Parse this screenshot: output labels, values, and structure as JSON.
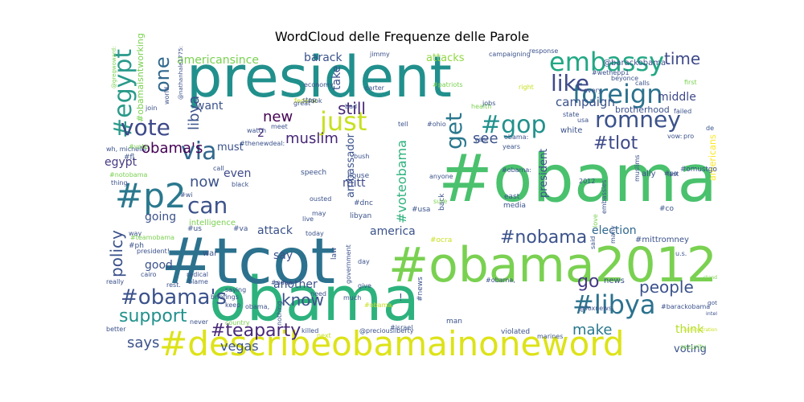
{
  "chart_data": {
    "type": "wordcloud",
    "title": "WordCloud delle Frequenze delle Parole",
    "colormap": "viridis",
    "background": "#ffffff",
    "words": [
      {
        "text": "#obama",
        "weight": 100,
        "color": "#4ac16d"
      },
      {
        "text": "president",
        "weight": 58,
        "color": "#21908d"
      },
      {
        "text": "obama",
        "weight": 58,
        "color": "#2db27d"
      },
      {
        "text": "#tcot",
        "weight": 56,
        "color": "#2c728e"
      },
      {
        "text": "#obama2012",
        "weight": 50,
        "color": "#7ad151"
      },
      {
        "text": "#describeobamainoneword",
        "weight": 38,
        "color": "#dde318"
      },
      {
        "text": "embassy",
        "weight": 25,
        "color": "#22a884"
      },
      {
        "text": "foreign",
        "weight": 24,
        "color": "#2c728e"
      },
      {
        "text": "#p2",
        "weight": 32,
        "color": "#2a788e"
      },
      {
        "text": "#egypt",
        "weight": 22,
        "color": "#2a9a8a"
      },
      {
        "text": "#gop",
        "weight": 22,
        "color": "#21918c"
      },
      {
        "text": "romney",
        "weight": 22,
        "color": "#3b528b"
      },
      {
        "text": "vote",
        "weight": 22,
        "color": "#3e4a89"
      },
      {
        "text": "#libya",
        "weight": 24,
        "color": "#2c728e"
      },
      {
        "text": "#obama's",
        "weight": 20,
        "color": "#3b528b"
      },
      {
        "text": "#nobama",
        "weight": 18,
        "color": "#3b528b"
      },
      {
        "text": "#teaparty",
        "weight": 18,
        "color": "#482878"
      },
      {
        "text": "like",
        "weight": 18,
        "color": "#3e4a89"
      },
      {
        "text": "just",
        "weight": 22,
        "color": "#c8e020"
      },
      {
        "text": "via",
        "weight": 22,
        "color": "#31688e"
      },
      {
        "text": "can",
        "weight": 20,
        "color": "#3b528b"
      },
      {
        "text": "one",
        "weight": 18,
        "color": "#31688e"
      },
      {
        "text": "get",
        "weight": 18,
        "color": "#2a788e"
      },
      {
        "text": "#tlot",
        "weight": 18,
        "color": "#3e4a89"
      },
      {
        "text": "support",
        "weight": 18,
        "color": "#21918c"
      },
      {
        "text": "know",
        "weight": 16,
        "color": "#3b528b"
      },
      {
        "text": "people",
        "weight": 16,
        "color": "#3b528b"
      },
      {
        "text": "make",
        "weight": 15,
        "color": "#2a788e"
      },
      {
        "text": "says",
        "weight": 15,
        "color": "#3b528b"
      },
      {
        "text": "policy",
        "weight": 14,
        "color": "#3b528b"
      },
      {
        "text": "go",
        "weight": 16,
        "color": "#443983"
      },
      {
        "text": "time",
        "weight": 15,
        "color": "#3e4a89"
      },
      {
        "text": "obama's",
        "weight": 14,
        "color": "#440154"
      },
      {
        "text": "muslim",
        "weight": 13,
        "color": "#482878"
      },
      {
        "text": "still",
        "weight": 14,
        "color": "#482878"
      },
      {
        "text": "libya",
        "weight": 13,
        "color": "#3b528b"
      },
      {
        "text": "see",
        "weight": 13,
        "color": "#3b528b"
      },
      {
        "text": "new",
        "weight": 13,
        "color": "#440154"
      },
      {
        "text": "now",
        "weight": 13,
        "color": "#3b528b"
      },
      {
        "text": "campaign",
        "weight": 11,
        "color": "#3b528b"
      },
      {
        "text": "vegas",
        "weight": 11,
        "color": "#3b528b"
      },
      {
        "text": "middle",
        "weight": 10,
        "color": "#3e4a89"
      },
      {
        "text": "attack",
        "weight": 10,
        "color": "#3b528b"
      },
      {
        "text": "america",
        "weight": 10,
        "color": "#3b528b"
      },
      {
        "text": "voting",
        "weight": 9,
        "color": "#3b528b"
      },
      {
        "text": "think",
        "weight": 9,
        "color": "#b5de2b"
      },
      {
        "text": "barack",
        "weight": 9,
        "color": "#3b528b"
      },
      {
        "text": "attacks",
        "weight": 9,
        "color": "#90d743"
      },
      {
        "text": "americansince",
        "weight": 9,
        "color": "#7ad151"
      },
      {
        "text": "ambassador",
        "weight": 8,
        "color": "#3b528b"
      },
      {
        "text": "mitt",
        "weight": 8,
        "color": "#3e4a89"
      },
      {
        "text": "president",
        "weight": 8,
        "color": "#3b528b"
      },
      {
        "text": "election",
        "weight": 8,
        "color": "#31688e"
      },
      {
        "text": "egypt",
        "weight": 8,
        "color": "#443983"
      },
      {
        "text": "going",
        "weight": 8,
        "color": "#3b528b"
      },
      {
        "text": "even",
        "weight": 8,
        "color": "#3e4a89"
      },
      {
        "text": "good",
        "weight": 8,
        "color": "#3b528b"
      },
      {
        "text": "another",
        "weight": 8,
        "color": "#3b528b"
      },
      {
        "text": "say",
        "weight": 8,
        "color": "#3b528b"
      },
      {
        "text": "take",
        "weight": 8,
        "color": "#3b528b"
      },
      {
        "text": "want",
        "weight": 8,
        "color": "#3b528b"
      },
      {
        "text": "must",
        "weight": 8,
        "color": "#3b528b"
      },
      {
        "text": "#voteobama",
        "weight": 8,
        "color": "#2db27d"
      },
      {
        "text": "americans",
        "weight": 7,
        "color": "#fde725"
      },
      {
        "text": "#omustgo",
        "weight": 7,
        "color": "#3b528b"
      },
      {
        "text": "@barackobama",
        "weight": 7,
        "color": "#3b528b"
      },
      {
        "text": "#mittromney",
        "weight": 6,
        "color": "#3b528b"
      },
      {
        "text": "brotherhood",
        "weight": 6,
        "color": "#3b528b"
      },
      {
        "text": "#obamaisntworking",
        "weight": 6,
        "color": "#7ad151"
      },
      {
        "text": "intelligence",
        "weight": 6,
        "color": "#7ad151"
      },
      {
        "text": "news",
        "weight": 6,
        "color": "#3b528b"
      },
      {
        "text": "ally",
        "weight": 6,
        "color": "#3b528b"
      },
      {
        "text": "white",
        "weight": 6,
        "color": "#3b528b"
      },
      {
        "text": "2",
        "weight": 12,
        "color": "#482878"
      },
      {
        "text": "#ocra",
        "weight": 5,
        "color": "#c8e020"
      },
      {
        "text": "#news",
        "weight": 5,
        "color": "#3b528b"
      },
      {
        "text": "#dnc",
        "weight": 5,
        "color": "#3b528b"
      },
      {
        "text": "#usa",
        "weight": 5,
        "color": "#3b528b"
      },
      {
        "text": "#co",
        "weight": 5,
        "color": "#3b528b"
      },
      {
        "text": "#ph",
        "weight": 5,
        "color": "#3b528b"
      },
      {
        "text": "#fl",
        "weight": 5,
        "color": "#3b528b"
      },
      {
        "text": "#us",
        "weight": 5,
        "color": "#3b528b"
      },
      {
        "text": "#va",
        "weight": 5,
        "color": "#3b528b"
      },
      {
        "text": "libyan",
        "weight": 5,
        "color": "#3b528b"
      },
      {
        "text": "house",
        "weight": 5,
        "color": "#3b528b"
      },
      {
        "text": "speech",
        "weight": 5,
        "color": "#3b528b"
      },
      {
        "text": "media",
        "weight": 5,
        "color": "#3b528b"
      },
      {
        "text": "east",
        "weight": 5,
        "color": "#3b528b"
      },
      {
        "text": "back",
        "weight": 5,
        "color": "#3b528b"
      },
      {
        "text": "law",
        "weight": 5,
        "color": "#3b528b"
      },
      {
        "text": "man",
        "weight": 5,
        "color": "#3b528b"
      },
      {
        "text": "got",
        "weight": 5,
        "color": "#3b528b"
      },
      {
        "text": "intel",
        "weight": 5,
        "color": "#3b528b"
      },
      {
        "text": "stand",
        "weight": 5,
        "color": "#7ad151"
      },
      {
        "text": "embassies",
        "weight": 5,
        "color": "#3b528b"
      },
      {
        "text": "muslims",
        "weight": 5,
        "color": "#3b528b"
      },
      {
        "text": "love",
        "weight": 5,
        "color": "#7ad151"
      },
      {
        "text": "violated",
        "weight": 5,
        "color": "#3b528b"
      },
      {
        "text": "administration",
        "weight": 5,
        "color": "#c8e020"
      },
      {
        "text": "security",
        "weight": 5,
        "color": "#7ad151"
      },
      {
        "text": "#barackobama",
        "weight": 5,
        "color": "#3b528b"
      },
      {
        "text": "@foxnews",
        "weight": 5,
        "color": "#3b528b"
      },
      {
        "text": "#israel",
        "weight": 5,
        "color": "#3b528b"
      },
      {
        "text": "@preciousliberty",
        "weight": 5,
        "color": "#3b528b"
      },
      {
        "text": "killed",
        "weight": 5,
        "color": "#3b528b"
      },
      {
        "text": "give",
        "weight": 5,
        "color": "#3b528b"
      },
      {
        "text": "#ndaa",
        "weight": 5,
        "color": "#3b528b"
      },
      {
        "text": "briefings",
        "weight": 5,
        "color": "#3b528b"
      },
      {
        "text": "radical",
        "weight": 5,
        "color": "#3b528b"
      },
      {
        "text": "blame",
        "weight": 5,
        "color": "#3b528b"
      },
      {
        "text": "need",
        "weight": 5,
        "color": "#3b528b"
      },
      {
        "text": "day",
        "weight": 5,
        "color": "#3b528b"
      },
      {
        "text": "today",
        "weight": 5,
        "color": "#3b528b"
      },
      {
        "text": "ousted",
        "weight": 5,
        "color": "#3b528b"
      },
      {
        "text": "live",
        "weight": 5,
        "color": "#3b528b"
      },
      {
        "text": "black",
        "weight": 5,
        "color": "#3b528b"
      },
      {
        "text": "call",
        "weight": 5,
        "color": "#3b528b"
      },
      {
        "text": "way",
        "weight": 5,
        "color": "#3b528b"
      },
      {
        "text": "better",
        "weight": 5,
        "color": "#3b528b"
      },
      {
        "text": "wh, michelle",
        "weight": 4,
        "color": "#3b528b"
      },
      {
        "text": "really",
        "weight": 4,
        "color": "#3b528b"
      },
      {
        "text": "cairo",
        "weight": 4,
        "color": "#3b528b"
      },
      {
        "text": "keep",
        "weight": 4,
        "color": "#3b528b"
      },
      {
        "text": "saying",
        "weight": 4,
        "color": "#3b528b"
      },
      {
        "text": "never",
        "weight": 4,
        "color": "#3b528b"
      },
      {
        "text": "anyone",
        "weight": 4,
        "color": "#3b528b"
      },
      {
        "text": "nothing",
        "weight": 4,
        "color": "#3b528b"
      },
      {
        "text": "#pa",
        "weight": 4,
        "color": "#3b528b"
      },
      {
        "text": "first",
        "weight": 4,
        "color": "#7ad151"
      },
      {
        "text": "failed",
        "weight": 4,
        "color": "#3b528b"
      },
      {
        "text": "calls",
        "weight": 4,
        "color": "#3b528b"
      },
      {
        "text": "beyonce",
        "weight": 4,
        "color": "#3b528b"
      },
      {
        "text": "response",
        "weight": 4,
        "color": "#3b528b"
      },
      {
        "text": "campaigning",
        "weight": 4,
        "color": "#3b528b"
      },
      {
        "text": "jimmy",
        "weight": 4,
        "color": "#3b528b"
      },
      {
        "text": "#patriots",
        "weight": 4,
        "color": "#7ad151"
      },
      {
        "text": "health",
        "weight": 4,
        "color": "#7ad151"
      },
      {
        "text": "jobs",
        "weight": 4,
        "color": "#3b528b"
      },
      {
        "text": "federal",
        "weight": 4,
        "color": "#c8e020"
      },
      {
        "text": "economy",
        "weight": 4,
        "color": "#3b528b"
      },
      {
        "text": "great",
        "weight": 4,
        "color": "#3b528b"
      },
      {
        "text": "meet",
        "weight": 4,
        "color": "#3b528b"
      },
      {
        "text": "watch",
        "weight": 4,
        "color": "#3b528b"
      },
      {
        "text": "carter",
        "weight": 4,
        "color": "#3b528b"
      },
      {
        "text": "tell",
        "weight": 4,
        "color": "#3b528b"
      },
      {
        "text": "bad",
        "weight": 4,
        "color": "#3b528b"
      },
      {
        "text": "#obama:",
        "weight": 5,
        "color": "#3b528b"
      },
      {
        "text": "#obama,",
        "weight": 5,
        "color": "#3b528b"
      },
      {
        "text": "#obama.",
        "weight": 4,
        "color": "#c8e020"
      },
      {
        "text": "#vote",
        "weight": 4,
        "color": "#7ad151"
      },
      {
        "text": "#wi",
        "weight": 4,
        "color": "#3b528b"
      },
      {
        "text": "#teamobama",
        "weight": 4,
        "color": "#7ad151"
      },
      {
        "text": "#notobama",
        "weight": 4,
        "color": "#7ad151"
      },
      {
        "text": "#thenewdeal:",
        "weight": 4,
        "color": "#3b528b"
      },
      {
        "text": "@gregwoward:",
        "weight": 4,
        "color": "#7ad151"
      },
      {
        "text": "@nathanhale1775:",
        "weight": 4,
        "color": "#3b528b"
      },
      {
        "text": "#wethepp1",
        "weight": 4,
        "color": "#3b528b"
      },
      {
        "text": "#ohio",
        "weight": 4,
        "color": "#3b528b"
      },
      {
        "text": "obama:",
        "weight": 4,
        "color": "#3b528b"
      },
      {
        "text": "obama,",
        "weight": 4,
        "color": "#3b528b"
      },
      {
        "text": "president!",
        "weight": 4,
        "color": "#3b528b"
      },
      {
        "text": "country",
        "weight": 4,
        "color": "#7ad151"
      },
      {
        "text": "government",
        "weight": 4,
        "color": "#3b528b"
      },
      {
        "text": "much",
        "weight": 4,
        "color": "#3b528b"
      },
      {
        "text": "marines",
        "weight": 4,
        "color": "#3b528b"
      },
      {
        "text": "years",
        "weight": 4,
        "color": "#3b528b"
      },
      {
        "text": "year",
        "weight": 4,
        "color": "#3b528b"
      },
      {
        "text": "bush",
        "weight": 4,
        "color": "#3b528b"
      },
      {
        "text": "sure",
        "weight": 4,
        "color": "#7ad151"
      },
      {
        "text": "many",
        "weight": 4,
        "color": "#3b528b"
      },
      {
        "text": "said",
        "weight": 4,
        "color": "#3b528b"
      },
      {
        "text": "u.s.",
        "weight": 4,
        "color": "#3b528b"
      },
      {
        "text": "last",
        "weight": 4,
        "color": "#3b528b"
      },
      {
        "text": "usa",
        "weight": 4,
        "color": "#3b528b"
      },
      {
        "text": "state",
        "weight": 4,
        "color": "#3b528b"
      },
      {
        "text": "right",
        "weight": 4,
        "color": "#c8e020"
      },
      {
        "text": "every",
        "weight": 4,
        "color": "#3b528b"
      },
      {
        "text": "pro",
        "weight": 4,
        "color": "#3b528b"
      },
      {
        "text": "vow:",
        "weight": 4,
        "color": "#3b528b"
      },
      {
        "text": "de",
        "weight": 4,
        "color": "#3b528b"
      },
      {
        "text": "2012",
        "weight": 4,
        "color": "#3b528b"
      },
      {
        "text": "may",
        "weight": 4,
        "color": "#3b528b"
      },
      {
        "text": "look",
        "weight": 4,
        "color": "#3b528b"
      },
      {
        "text": "stop",
        "weight": 4,
        "color": "#3b528b"
      },
      {
        "text": "join",
        "weight": 4,
        "color": "#3b528b"
      },
      {
        "text": "world",
        "weight": 4,
        "color": "#3b528b"
      },
      {
        "text": "thing",
        "weight": 4,
        "color": "#3b528b"
      },
      {
        "text": "rest.",
        "weight": 4,
        "color": "#3b528b"
      },
      {
        "text": "next",
        "weight": 4,
        "color": "#c8e020"
      },
      {
        "text": "war",
        "weight": 4,
        "color": "#3b528b"
      },
      {
        "text": "!",
        "weight": 6,
        "color": "#3b528b"
      },
      {
        "text": "#",
        "weight": 6,
        "color": "#3b528b"
      }
    ]
  }
}
